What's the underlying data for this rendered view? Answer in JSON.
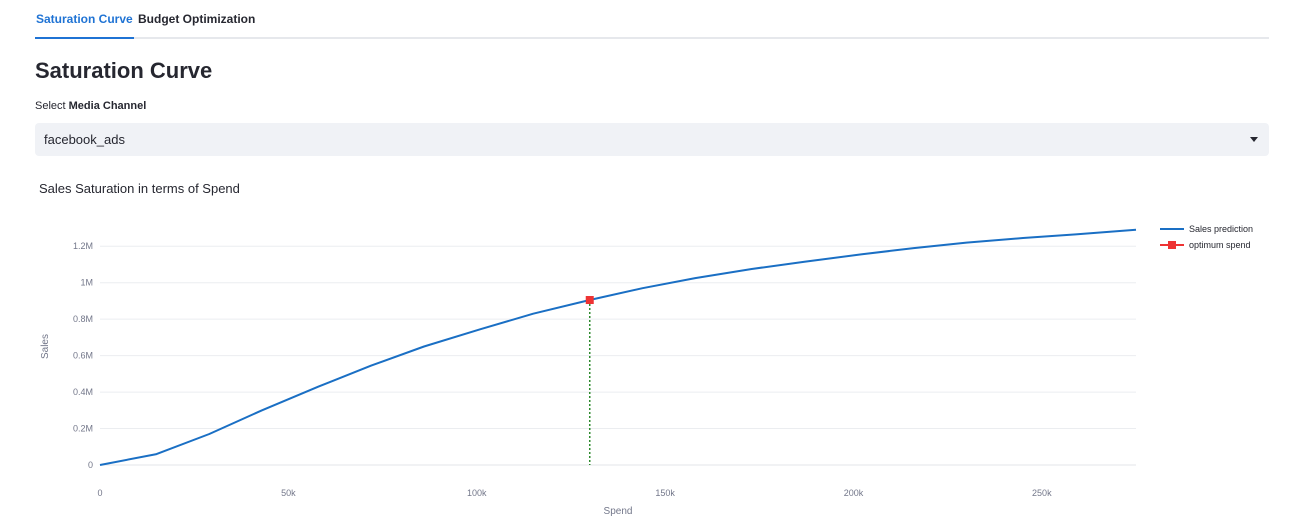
{
  "tabs": [
    {
      "label": "Saturation Curve",
      "active": true
    },
    {
      "label": "Budget Optimization",
      "active": false
    }
  ],
  "page_title": "Saturation Curve",
  "select": {
    "label_prefix": "Select ",
    "label_bold": "Media Channel",
    "value": "facebook_ads"
  },
  "chart_data": {
    "type": "line",
    "title": "Sales Saturation in terms of Spend",
    "xlabel": "Spend",
    "ylabel": "Sales",
    "xlim": [
      0,
      275000
    ],
    "ylim": [
      0,
      1300000
    ],
    "x_ticks": [
      0,
      50000,
      100000,
      150000,
      200000,
      250000
    ],
    "x_tick_labels": [
      "0",
      "50k",
      "100k",
      "150k",
      "200k",
      "250k"
    ],
    "y_ticks": [
      0,
      200000,
      400000,
      600000,
      800000,
      1000000,
      1200000
    ],
    "y_tick_labels": [
      "0",
      "0.2M",
      "0.4M",
      "0.6M",
      "0.8M",
      "1M",
      "1.2M"
    ],
    "grid": true,
    "legend_position": "top-right",
    "series": [
      {
        "name": "Sales prediction",
        "color": "#1a6fc4",
        "x": [
          0,
          15000,
          29000,
          43000,
          58000,
          72000,
          86000,
          101000,
          115000,
          130000,
          144000,
          158000,
          173000,
          187000,
          202000,
          216000,
          230000,
          245000,
          259000,
          275000
        ],
        "y": [
          0,
          60000,
          170000,
          300000,
          430000,
          545000,
          650000,
          745000,
          830000,
          905000,
          970000,
          1025000,
          1075000,
          1115000,
          1155000,
          1190000,
          1220000,
          1245000,
          1265000,
          1290000
        ]
      }
    ],
    "optimum": {
      "name": "optimum spend",
      "color": "#ee3333",
      "line_color": "#2e8b2e",
      "x": 130000,
      "y": 905000
    }
  }
}
